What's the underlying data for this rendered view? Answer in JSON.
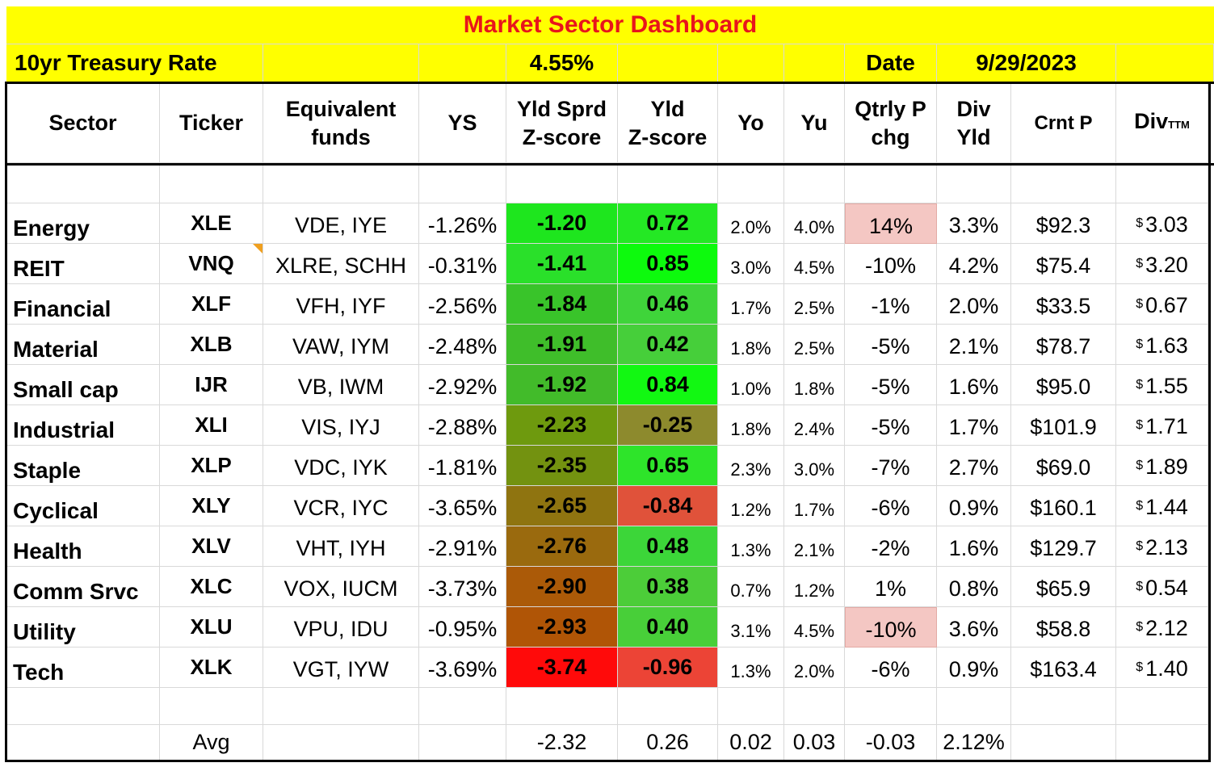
{
  "title": "Market Sector Dashboard",
  "treasury": {
    "label": "10yr Treasury Rate",
    "value": "4.55%",
    "date_label": "Date",
    "date_value": "9/29/2023"
  },
  "headers": {
    "sector": "Sector",
    "ticker": "Ticker",
    "funds_l1": "Equivalent",
    "funds_l2": "funds",
    "ys": "YS",
    "sprd_l1": "Yld Sprd",
    "sprd_l2": "Z-score",
    "yld_l1": "Yld",
    "yld_l2": "Z-score",
    "yo": "Yo",
    "yu": "Yu",
    "qtr_l1": "Qtrly P",
    "qtr_l2": "chg",
    "dy_l1": "Div",
    "dy_l2": "Yld",
    "crnt": "Crnt P",
    "div_main": "Div",
    "div_sub": "TTM"
  },
  "rows": [
    {
      "sector": "Energy",
      "ticker": "XLE",
      "funds": "VDE, IYE",
      "ys": "-1.26%",
      "sprd": "-1.20",
      "yld": "0.72",
      "yo": "2.0%",
      "yu": "4.0%",
      "qtr": "14%",
      "dy": "3.3%",
      "crnt": "$92.3",
      "div": "3.03",
      "sprd_color": "#1ee61e",
      "yld_color": "#24e824",
      "qtr_color": "#f4c7c3"
    },
    {
      "sector": "REIT",
      "ticker": "VNQ",
      "funds": "XLRE, SCHH",
      "ys": "-0.31%",
      "sprd": "-1.41",
      "yld": "0.85",
      "yo": "3.0%",
      "yu": "4.5%",
      "qtr": "-10%",
      "dy": "4.2%",
      "crnt": "$75.4",
      "div": "3.20",
      "sprd_color": "#2ae02a",
      "yld_color": "#0dfa0d",
      "qtr_color": ""
    },
    {
      "sector": "Financial",
      "ticker": "XLF",
      "funds": "VFH, IYF",
      "ys": "-2.56%",
      "sprd": "-1.84",
      "yld": "0.46",
      "yo": "1.7%",
      "yu": "2.5%",
      "qtr": "-1%",
      "dy": "2.0%",
      "crnt": "$33.5",
      "div": "0.67",
      "sprd_color": "#39c42a",
      "yld_color": "#3fd43a",
      "qtr_color": ""
    },
    {
      "sector": "Material",
      "ticker": "XLB",
      "funds": "VAW, IYM",
      "ys": "-2.48%",
      "sprd": "-1.91",
      "yld": "0.42",
      "yo": "1.8%",
      "yu": "2.5%",
      "qtr": "-5%",
      "dy": "2.1%",
      "crnt": "$78.7",
      "div": "1.63",
      "sprd_color": "#3fbe2a",
      "yld_color": "#46cf3a",
      "qtr_color": ""
    },
    {
      "sector": "Small cap",
      "ticker": "IJR",
      "funds": "VB, IWM",
      "ys": "-2.92%",
      "sprd": "-1.92",
      "yld": "0.84",
      "yo": "1.0%",
      "yu": "1.8%",
      "qtr": "-5%",
      "dy": "1.6%",
      "crnt": "$95.0",
      "div": "1.55",
      "sprd_color": "#42bb2a",
      "yld_color": "#12f812",
      "qtr_color": ""
    },
    {
      "sector": "Industrial",
      "ticker": "XLI",
      "funds": "VIS, IYJ",
      "ys": "-2.88%",
      "sprd": "-2.23",
      "yld": "-0.25",
      "yo": "1.8%",
      "yu": "2.4%",
      "qtr": "-5%",
      "dy": "1.7%",
      "crnt": "$101.9",
      "div": "1.71",
      "sprd_color": "#6e9a0e",
      "yld_color": "#8d8a2d",
      "qtr_color": ""
    },
    {
      "sector": "Staple",
      "ticker": "XLP",
      "funds": "VDC, IYK",
      "ys": "-1.81%",
      "sprd": "-2.35",
      "yld": "0.65",
      "yo": "2.3%",
      "yu": "3.0%",
      "qtr": "-7%",
      "dy": "2.7%",
      "crnt": "$69.0",
      "div": "1.89",
      "sprd_color": "#739210",
      "yld_color": "#2ee42a",
      "qtr_color": ""
    },
    {
      "sector": "Cyclical",
      "ticker": "XLY",
      "funds": "VCR, IYC",
      "ys": "-3.65%",
      "sprd": "-2.65",
      "yld": "-0.84",
      "yo": "1.2%",
      "yu": "1.7%",
      "qtr": "-6%",
      "dy": "0.9%",
      "crnt": "$160.1",
      "div": "1.44",
      "sprd_color": "#8f7410",
      "yld_color": "#e0523a",
      "qtr_color": ""
    },
    {
      "sector": "Health",
      "ticker": "XLV",
      "funds": "VHT, IYH",
      "ys": "-2.91%",
      "sprd": "-2.76",
      "yld": "0.48",
      "yo": "1.3%",
      "yu": "2.1%",
      "qtr": "-2%",
      "dy": "1.6%",
      "crnt": "$129.7",
      "div": "2.13",
      "sprd_color": "#9a6a0e",
      "yld_color": "#3cd639",
      "qtr_color": ""
    },
    {
      "sector": "Comm Srvc",
      "ticker": "XLC",
      "funds": "VOX, IUCM",
      "ys": "-3.73%",
      "sprd": "-2.90",
      "yld": "0.38",
      "yo": "0.7%",
      "yu": "1.2%",
      "qtr": "1%",
      "dy": "0.8%",
      "crnt": "$65.9",
      "div": "0.54",
      "sprd_color": "#ab5a08",
      "yld_color": "#4ccd39",
      "qtr_color": ""
    },
    {
      "sector": "Utility",
      "ticker": "XLU",
      "funds": "VPU, IDU",
      "ys": "-0.95%",
      "sprd": "-2.93",
      "yld": "0.40",
      "yo": "3.1%",
      "yu": "4.5%",
      "qtr": "-10%",
      "dy": "3.6%",
      "crnt": "$58.8",
      "div": "2.12",
      "sprd_color": "#b05506",
      "yld_color": "#48cf39",
      "qtr_color": "#f4c7c3"
    },
    {
      "sector": "Tech",
      "ticker": "XLK",
      "funds": "VGT, IYW",
      "ys": "-3.69%",
      "sprd": "-3.74",
      "yld": "-0.96",
      "yo": "1.3%",
      "yu": "2.0%",
      "qtr": "-6%",
      "dy": "0.9%",
      "crnt": "$163.4",
      "div": "1.40",
      "sprd_color": "#ff0a0a",
      "yld_color": "#ec4436",
      "qtr_color": ""
    }
  ],
  "currency_symbol": "$",
  "avg": {
    "label": "Avg",
    "sprd": "-2.32",
    "yld": "0.26",
    "yo": "0.02",
    "yu": "0.03",
    "qtr": "-0.03",
    "dy": "2.12%"
  },
  "colors": {
    "title_band": "#ffff00",
    "title_text": "#e8141c",
    "note_marker": "#f0a020"
  }
}
